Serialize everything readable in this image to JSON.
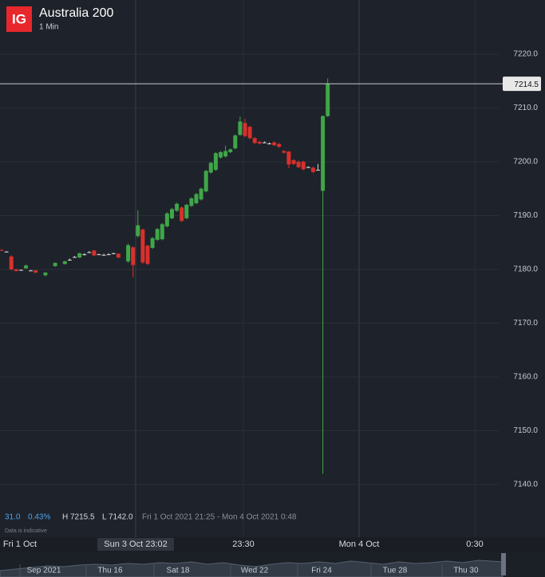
{
  "header": {
    "logo": "IG",
    "title": "Australia 200",
    "interval": "1 Min"
  },
  "chart_data": {
    "type": "candlestick",
    "open": [
      7183.6,
      7183.3,
      7182.4,
      7180.0,
      7179.9,
      7180.2,
      7179.8,
      7179.8,
      null,
      7178.9,
      null,
      7180.6,
      null,
      7181.0,
      7181.8,
      7182.3,
      7182.2,
      7182.8,
      7183.2,
      7183.5,
      7182.8,
      7182.7,
      7182.8,
      7183.0,
      7182.9,
      null,
      7181.5,
      7184.1,
      7186.2,
      7187.4,
      7184.4,
      7184.0,
      7185.5,
      7185.6,
      7188.0,
      7189.5,
      7190.9,
      7191.5,
      7189.5,
      7191.8,
      7192.3,
      7193.0,
      7194.5,
      7198.0,
      7198.5,
      7200.8,
      7201.0,
      7201.8,
      7202.5,
      7205.0,
      7207.2,
      7206.5,
      7204.4,
      7203.7,
      7203.6,
      7203.4,
      7203.6,
      7203.3,
      7202.0,
      7201.9,
      7200.3,
      7200.0,
      7200.0,
      7199.0,
      7198.9,
      7198.5,
      7194.6,
      7208.5
    ],
    "high": [
      7183.8,
      7183.4,
      7182.6,
      7180.1,
      7180.0,
      7180.9,
      7179.9,
      7179.9,
      null,
      7179.5,
      null,
      7181.3,
      null,
      7181.6,
      7182.0,
      7182.5,
      7183.1,
      7183.0,
      7183.4,
      7183.6,
      7182.9,
      7182.9,
      7183.0,
      7183.1,
      7183.0,
      null,
      7184.8,
      7184.3,
      7191.0,
      7187.6,
      7184.6,
      7186.0,
      7187.7,
      7188.6,
      7190.6,
      7191.4,
      7192.4,
      7191.7,
      7192.2,
      7193.4,
      7194.2,
      7195.2,
      7198.5,
      7200.0,
      7201.8,
      7202.0,
      7203.0,
      7202.5,
      7205.1,
      7208.4,
      7208.0,
      7206.7,
      7204.6,
      7203.9,
      7203.8,
      7203.6,
      7203.8,
      7203.5,
      7202.2,
      7202.0,
      7200.5,
      7200.2,
      7200.2,
      7199.2,
      7199.1,
      7199.6,
      7208.6,
      7215.5
    ],
    "low": [
      7183.4,
      7183.2,
      7179.8,
      7179.6,
      7179.8,
      7180.1,
      7179.7,
      7179.3,
      null,
      7178.7,
      null,
      7180.5,
      null,
      7180.9,
      7181.6,
      7182.2,
      7182.1,
      7182.6,
      7183.1,
      7182.5,
      7182.7,
      7182.6,
      7182.7,
      7182.8,
      7182.1,
      null,
      7181.2,
      7178.5,
      7185.9,
      7181.0,
      7180.8,
      7183.8,
      7185.3,
      7185.4,
      7187.8,
      7189.3,
      7190.7,
      7188.8,
      7189.3,
      7191.6,
      7192.1,
      7192.8,
      7194.3,
      7197.8,
      7198.3,
      7200.6,
      7200.8,
      7201.6,
      7202.3,
      7204.8,
      7204.6,
      7204.2,
      7203.3,
      7203.2,
      7203.5,
      7203.3,
      7202.9,
      7202.6,
      7201.5,
      7198.8,
      7199.4,
      7198.8,
      7198.4,
      7198.9,
      7197.9,
      7198.4,
      7142.0,
      7208.3
    ],
    "close": [
      7183.5,
      7183.3,
      7180.0,
      7179.7,
      7179.9,
      7180.7,
      7179.8,
      7179.4,
      null,
      7179.4,
      null,
      7181.2,
      null,
      7181.5,
      7181.8,
      7182.3,
      7183.0,
      7182.8,
      7183.2,
      7182.6,
      7182.8,
      7182.7,
      7182.8,
      7183.0,
      7182.2,
      null,
      7184.5,
      7180.8,
      7188.2,
      7181.3,
      7181.0,
      7185.8,
      7187.5,
      7188.4,
      7190.4,
      7191.2,
      7192.2,
      7189.0,
      7192.0,
      7193.2,
      7194.0,
      7195.0,
      7198.3,
      7199.8,
      7201.6,
      7201.8,
      7202.0,
      7202.3,
      7204.9,
      7207.5,
      7204.8,
      7204.4,
      7203.5,
      7203.4,
      7203.6,
      7203.4,
      7203.1,
      7202.8,
      7201.7,
      7199.5,
      7199.6,
      7199.0,
      7198.6,
      7199.0,
      7198.1,
      7198.5,
      7208.5,
      7214.5
    ],
    "colors": {
      "up": "#3fa648",
      "down": "#d9302c",
      "flat": "#d8d8d8"
    },
    "ylim": [
      7136,
      7224
    ],
    "yticks": [
      {
        "value": 7140,
        "label": "7140.0"
      },
      {
        "value": 7150,
        "label": "7150.0"
      },
      {
        "value": 7160,
        "label": "7160.0"
      },
      {
        "value": 7170,
        "label": "7170.0"
      },
      {
        "value": 7180,
        "label": "7180.0"
      },
      {
        "value": 7190,
        "label": "7190.0"
      },
      {
        "value": 7200,
        "label": "7200.0"
      },
      {
        "value": 7210,
        "label": "7210.0"
      },
      {
        "value": 7220,
        "label": "7220.0"
      }
    ],
    "grid": true,
    "last_price": 7214.5,
    "x_axis_labels": [
      "Fri 1 Oct",
      "Sun 3 Oct 23:02",
      "23:30",
      "Mon 4 Oct",
      "0:30"
    ]
  },
  "info": {
    "change": "31.0",
    "change_pct": "0.43%",
    "high": "H 7215.5",
    "low": "L 7142.0",
    "range": "Fri 1 Oct 2021 21:25 - Mon 4 Oct 2021 0:48",
    "note": "Data is indicative"
  },
  "navigator": {
    "labels": [
      "Sep 2021",
      "Thu 16",
      "Sat 18",
      "Wed 22",
      "Fri 24",
      "Tue 28",
      "Thu 30"
    ]
  }
}
